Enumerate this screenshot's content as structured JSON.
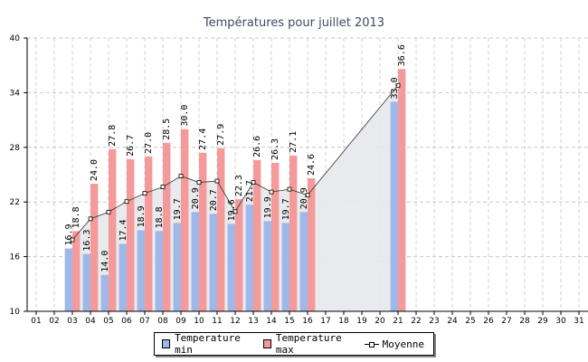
{
  "chart_data": {
    "type": "bar",
    "title": "Températures pour juillet 2013",
    "xlabel": "",
    "ylabel": "",
    "ylim": [
      10,
      40
    ],
    "yticks": [
      10,
      16,
      22,
      28,
      34,
      40
    ],
    "grid": true,
    "categories": [
      "01",
      "02",
      "03",
      "04",
      "05",
      "06",
      "07",
      "08",
      "09",
      "10",
      "11",
      "12",
      "13",
      "14",
      "15",
      "16",
      "17",
      "18",
      "19",
      "20",
      "21",
      "22",
      "23",
      "24",
      "25",
      "26",
      "27",
      "28",
      "29",
      "30",
      "31"
    ],
    "series": [
      {
        "name": "Temperature min",
        "type": "bar",
        "color": "#9fb8e8",
        "values": [
          null,
          null,
          16.9,
          16.3,
          14.0,
          17.4,
          18.9,
          18.8,
          19.7,
          20.9,
          20.7,
          19.6,
          21.7,
          19.9,
          19.7,
          20.9,
          null,
          null,
          null,
          null,
          33.0,
          null,
          null,
          null,
          null,
          null,
          null,
          null,
          null,
          null,
          null
        ]
      },
      {
        "name": "Temperature max",
        "type": "bar",
        "color": "#f59a9a",
        "values": [
          null,
          null,
          18.8,
          24.0,
          27.8,
          26.7,
          27.0,
          28.5,
          30.0,
          27.4,
          27.9,
          22.3,
          26.6,
          26.3,
          27.1,
          24.6,
          null,
          null,
          null,
          null,
          36.6,
          null,
          null,
          null,
          null,
          null,
          null,
          null,
          null,
          null,
          null
        ]
      },
      {
        "name": "Moyenne",
        "type": "line",
        "color": "#000000",
        "values": [
          null,
          null,
          17.85,
          20.15,
          20.9,
          22.05,
          22.95,
          23.65,
          24.85,
          24.15,
          24.3,
          20.95,
          24.15,
          23.1,
          23.4,
          22.75,
          null,
          null,
          null,
          null,
          34.8,
          null,
          null,
          null,
          null,
          null,
          null,
          null,
          null,
          null,
          null
        ]
      }
    ],
    "legend_position": "bottom-center",
    "legend": [
      "Temperature min",
      "Temperature max",
      "Moyenne"
    ]
  }
}
